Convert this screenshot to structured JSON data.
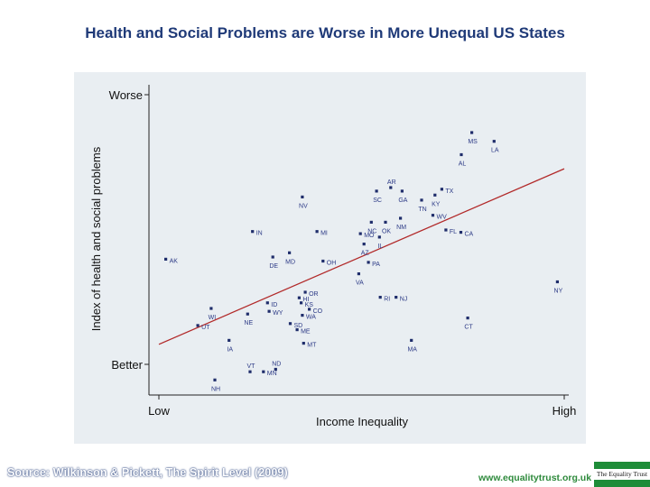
{
  "page": {
    "title": "Health and Social Problems are Worse in More Unequal US States",
    "source": "Source: Wilkinson & Pickett, The Spirit Level (2009)",
    "url": "www.equalitytrust.org.uk",
    "logo_text": "The Equality Trust"
  },
  "colors": {
    "points": "#1f2d6b",
    "labels": "#2c3a86",
    "trend": "#b22a2a",
    "panel": "#e9eef2"
  },
  "chart_data": {
    "type": "scatter",
    "title": "Health and Social Problems are Worse in More Unequal US States",
    "xlabel": "Income Inequality",
    "ylabel": "Index of health and social problems",
    "x_ticks": [
      "Low",
      "High"
    ],
    "y_ticks": [
      "Worse",
      "Better"
    ],
    "xlim": [
      0,
      100
    ],
    "ylim": [
      0,
      100
    ],
    "trendline": [
      [
        0,
        16
      ],
      [
        100,
        82
      ]
    ],
    "points": [
      {
        "label": "MS",
        "x": 77.2,
        "y": 95.6
      },
      {
        "label": "LA",
        "x": 82.7,
        "y": 92.3
      },
      {
        "label": "AL",
        "x": 74.6,
        "y": 87.3
      },
      {
        "label": "AR",
        "x": 57.2,
        "y": 74.9
      },
      {
        "label": "SC",
        "x": 53.7,
        "y": 73.6
      },
      {
        "label": "GA",
        "x": 60.0,
        "y": 73.6
      },
      {
        "label": "TX",
        "x": 69.8,
        "y": 74.3
      },
      {
        "label": "KY",
        "x": 68.1,
        "y": 72.1
      },
      {
        "label": "TN",
        "x": 64.8,
        "y": 70.2
      },
      {
        "label": "NV",
        "x": 35.4,
        "y": 71.4
      },
      {
        "label": "WV",
        "x": 67.6,
        "y": 64.5
      },
      {
        "label": "NM",
        "x": 59.6,
        "y": 63.4
      },
      {
        "label": "NC",
        "x": 52.4,
        "y": 61.9
      },
      {
        "label": "OK",
        "x": 55.9,
        "y": 61.9
      },
      {
        "label": "FL",
        "x": 70.8,
        "y": 59.0
      },
      {
        "label": "CA",
        "x": 74.5,
        "y": 58.1
      },
      {
        "label": "IN",
        "x": 23.1,
        "y": 58.4
      },
      {
        "label": "MI",
        "x": 39.0,
        "y": 58.4
      },
      {
        "label": "MO",
        "x": 49.7,
        "y": 57.6
      },
      {
        "label": "IL",
        "x": 54.4,
        "y": 56.3
      },
      {
        "label": "AZ",
        "x": 50.6,
        "y": 53.7
      },
      {
        "label": "AK",
        "x": 1.7,
        "y": 48.0
      },
      {
        "label": "DE",
        "x": 28.1,
        "y": 48.8
      },
      {
        "label": "MD",
        "x": 32.2,
        "y": 50.4
      },
      {
        "label": "OH",
        "x": 40.5,
        "y": 47.3
      },
      {
        "label": "PA",
        "x": 51.7,
        "y": 46.8
      },
      {
        "label": "VA",
        "x": 49.3,
        "y": 42.5
      },
      {
        "label": "NY",
        "x": 98.3,
        "y": 39.5
      },
      {
        "label": "OR",
        "x": 36.1,
        "y": 35.6
      },
      {
        "label": "HI",
        "x": 34.6,
        "y": 33.5
      },
      {
        "label": "RI",
        "x": 54.6,
        "y": 33.7
      },
      {
        "label": "NJ",
        "x": 58.5,
        "y": 33.7
      },
      {
        "label": "ID",
        "x": 26.8,
        "y": 31.6
      },
      {
        "label": "KS",
        "x": 35.1,
        "y": 31.6
      },
      {
        "label": "WI",
        "x": 12.9,
        "y": 29.5
      },
      {
        "label": "NE",
        "x": 21.9,
        "y": 27.4
      },
      {
        "label": "WY",
        "x": 27.2,
        "y": 28.4
      },
      {
        "label": "CO",
        "x": 37.1,
        "y": 29.2
      },
      {
        "label": "WA",
        "x": 35.4,
        "y": 26.9
      },
      {
        "label": "CT",
        "x": 76.2,
        "y": 25.9
      },
      {
        "label": "UT",
        "x": 9.6,
        "y": 23.1
      },
      {
        "label": "SD",
        "x": 32.4,
        "y": 23.8
      },
      {
        "label": "ME",
        "x": 34.1,
        "y": 21.5
      },
      {
        "label": "IA",
        "x": 17.3,
        "y": 17.5
      },
      {
        "label": "MA",
        "x": 62.3,
        "y": 17.5
      },
      {
        "label": "MT",
        "x": 35.7,
        "y": 16.4
      },
      {
        "label": "NH",
        "x": 13.8,
        "y": 2.6
      },
      {
        "label": "VT",
        "x": 22.5,
        "y": 5.7
      },
      {
        "label": "MN",
        "x": 25.8,
        "y": 5.7
      },
      {
        "label": "ND",
        "x": 28.8,
        "y": 6.6
      }
    ]
  }
}
